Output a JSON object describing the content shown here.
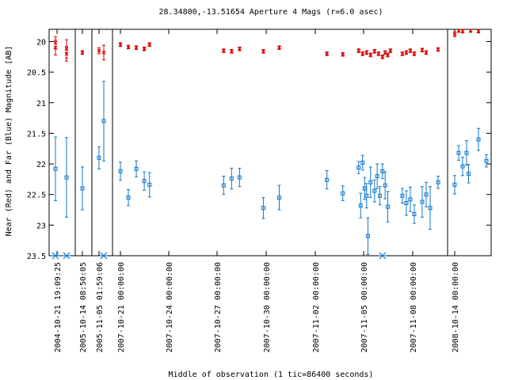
{
  "chart_data": {
    "type": "scatter",
    "title": "28.34800,-13.51654   Aperture 4 Mags (r=6.0 asec)",
    "xlabel": "Middle of observation (1 tic=86400 seconds)",
    "ylabel": "Near (Red) and Far (Blue) Magnitude [AB]",
    "ylim": [
      23.5,
      19.8
    ],
    "y_ticks": [
      "20",
      "20.5",
      "21",
      "21.5",
      "22",
      "22.5",
      "23",
      "23.5"
    ],
    "x_tick_labels": [
      "2004-10-21 19:09:25",
      "2005-10-14 08:50:05",
      "2005-11-05 01:59:06",
      "2007-10-21 00:00:00",
      "2007-10-24 00:00:00",
      "2007-10-27 00:00:00",
      "2007-10-30 00:00:00",
      "2007-11-02 00:00:00",
      "2007-11-05 00:00:00",
      "2007-11-08 00:00:00",
      "2008-10-14 00:00:00"
    ],
    "series": [
      {
        "color": "#dd0000",
        "marker": "x",
        "points": [
          {
            "x": "2004-10-21 19:09:25",
            "y": 20.02,
            "err": 0.1
          },
          {
            "x": "2004-10-21 19:09:25",
            "y": 20.1,
            "err": 0.12
          },
          {
            "x": "2004-10-21 21:30:00",
            "y": 20.12,
            "err": 0.15
          },
          {
            "x": "2004-10-21 21:30:00",
            "y": 20.2,
            "err": 0.12
          },
          {
            "x": "2005-10-14 08:50:05",
            "y": 20.18,
            "err": 0.03
          },
          {
            "x": "2005-11-05 01:59:06",
            "y": 20.15,
            "err": 0.05
          },
          {
            "x": "2005-11-05 04:00:00",
            "y": 20.18,
            "err": 0.12
          },
          {
            "x": "2007-10-21 00:00:00",
            "y": 20.05,
            "err": 0.03
          },
          {
            "x": "2007-10-21 12:00:00",
            "y": 20.09,
            "err": 0.03
          },
          {
            "x": "2007-10-22 00:00:00",
            "y": 20.1,
            "err": 0.03
          },
          {
            "x": "2007-10-22 12:00:00",
            "y": 20.12,
            "err": 0.03
          },
          {
            "x": "2007-10-22 20:00:00",
            "y": 20.05,
            "err": 0.03
          },
          {
            "x": "2007-10-27 12:00:00",
            "y": 20.15,
            "err": 0.03
          },
          {
            "x": "2007-10-28 00:00:00",
            "y": 20.16,
            "err": 0.03
          },
          {
            "x": "2007-10-28 12:00:00",
            "y": 20.12,
            "err": 0.03
          },
          {
            "x": "2007-10-30 00:00:00",
            "y": 20.16,
            "err": 0.03
          },
          {
            "x": "2007-10-31 00:00:00",
            "y": 20.1,
            "err": 0.03
          },
          {
            "x": "2007-11-03 00:00:00",
            "y": 20.2,
            "err": 0.03
          },
          {
            "x": "2007-11-04 00:00:00",
            "y": 20.21,
            "err": 0.03
          },
          {
            "x": "2007-11-05 00:00:00",
            "y": 20.15,
            "err": 0.03
          },
          {
            "x": "2007-11-05 06:00:00",
            "y": 20.2,
            "err": 0.03
          },
          {
            "x": "2007-11-05 12:00:00",
            "y": 20.18,
            "err": 0.03
          },
          {
            "x": "2007-11-05 18:00:00",
            "y": 20.22,
            "err": 0.03
          },
          {
            "x": "2007-11-06 00:00:00",
            "y": 20.16,
            "err": 0.03
          },
          {
            "x": "2007-11-06 06:00:00",
            "y": 20.2,
            "err": 0.03
          },
          {
            "x": "2007-11-06 12:00:00",
            "y": 20.25,
            "err": 0.03
          },
          {
            "x": "2007-11-06 16:00:00",
            "y": 20.18,
            "err": 0.03
          },
          {
            "x": "2007-11-06 20:00:00",
            "y": 20.22,
            "err": 0.03
          },
          {
            "x": "2007-11-07 00:00:00",
            "y": 20.15,
            "err": 0.03
          },
          {
            "x": "2007-11-07 18:00:00",
            "y": 20.2,
            "err": 0.03
          },
          {
            "x": "2007-11-08 00:00:00",
            "y": 20.18,
            "err": 0.03
          },
          {
            "x": "2007-11-08 06:00:00",
            "y": 20.15,
            "err": 0.03
          },
          {
            "x": "2007-11-08 12:00:00",
            "y": 20.2,
            "err": 0.03
          },
          {
            "x": "2007-11-09 00:00:00",
            "y": 20.14,
            "err": 0.03
          },
          {
            "x": "2007-11-09 06:00:00",
            "y": 20.18,
            "err": 0.03
          },
          {
            "x": "2007-11-10 00:00:00",
            "y": 20.13,
            "err": 0.03
          },
          {
            "x": "2008-10-14 00:00:00",
            "y": 19.88,
            "err": 0.04
          },
          {
            "x": "2008-10-14 12:00:00",
            "y": 19.82,
            "err": 0.03
          },
          {
            "x": "2008-10-15 00:00:00",
            "y": 19.83,
            "err": 0.03
          },
          {
            "x": "2008-10-16 00:00:00",
            "y": 19.82,
            "err": 0.03
          },
          {
            "x": "2008-10-17 00:00:00",
            "y": 19.83,
            "err": 0.03
          }
        ]
      },
      {
        "color": "#1177cc",
        "marker": "square",
        "points": [
          {
            "x": "2004-10-21 19:09:25",
            "y": 22.08,
            "err": 0.52
          },
          {
            "x": "2004-10-21 21:30:00",
            "y": 22.22,
            "err": 0.65
          },
          {
            "x": "2005-10-14 08:50:05",
            "y": 22.4,
            "err": 0.35
          },
          {
            "x": "2005-11-05 01:59:06",
            "y": 21.9,
            "err": 0.18
          },
          {
            "x": "2005-11-05 04:00:00",
            "y": 21.3,
            "err": 0.65
          },
          {
            "x": "2007-10-21 00:00:00",
            "y": 22.12,
            "err": 0.15
          },
          {
            "x": "2007-10-21 12:00:00",
            "y": 22.55,
            "err": 0.13
          },
          {
            "x": "2007-10-22 00:00:00",
            "y": 22.08,
            "err": 0.13
          },
          {
            "x": "2007-10-22 12:00:00",
            "y": 22.28,
            "err": 0.15
          },
          {
            "x": "2007-10-22 20:00:00",
            "y": 22.34,
            "err": 0.2
          },
          {
            "x": "2007-10-27 12:00:00",
            "y": 22.35,
            "err": 0.15
          },
          {
            "x": "2007-10-28 00:00:00",
            "y": 22.24,
            "err": 0.17
          },
          {
            "x": "2007-10-28 12:00:00",
            "y": 22.22,
            "err": 0.15
          },
          {
            "x": "2007-10-30 00:00:00",
            "y": 22.72,
            "err": 0.17
          },
          {
            "x": "2007-10-31 00:00:00",
            "y": 22.55,
            "err": 0.2
          },
          {
            "x": "2007-11-03 00:00:00",
            "y": 22.26,
            "err": 0.15
          },
          {
            "x": "2007-11-04 00:00:00",
            "y": 22.48,
            "err": 0.12
          },
          {
            "x": "2007-11-05 00:00:00",
            "y": 22.06,
            "err": 0.1
          },
          {
            "x": "2007-11-05 03:00:00",
            "y": 22.68,
            "err": 0.2
          },
          {
            "x": "2007-11-05 06:00:00",
            "y": 21.98,
            "err": 0.12
          },
          {
            "x": "2007-11-05 09:00:00",
            "y": 22.4,
            "err": 0.18
          },
          {
            "x": "2007-11-05 12:00:00",
            "y": 22.52,
            "err": 0.2
          },
          {
            "x": "2007-11-05 14:00:00",
            "y": 23.18,
            "err": 0.3
          },
          {
            "x": "2007-11-05 18:00:00",
            "y": 22.3,
            "err": 0.25
          },
          {
            "x": "2007-11-06 00:00:00",
            "y": 22.44,
            "err": 0.18
          },
          {
            "x": "2007-11-06 04:00:00",
            "y": 22.2,
            "err": 0.2
          },
          {
            "x": "2007-11-06 08:00:00",
            "y": 22.52,
            "err": 0.15
          },
          {
            "x": "2007-11-06 12:00:00",
            "y": 22.12,
            "err": 0.12
          },
          {
            "x": "2007-11-06 16:00:00",
            "y": 22.35,
            "err": 0.22
          },
          {
            "x": "2007-11-06 20:00:00",
            "y": 22.7,
            "err": 0.25
          },
          {
            "x": "2007-11-07 18:00:00",
            "y": 22.52,
            "err": 0.12
          },
          {
            "x": "2007-11-08 00:00:00",
            "y": 22.64,
            "err": 0.2
          },
          {
            "x": "2007-11-08 06:00:00",
            "y": 22.58,
            "err": 0.2
          },
          {
            "x": "2007-11-08 12:00:00",
            "y": 22.82,
            "err": 0.15
          },
          {
            "x": "2007-11-09 00:00:00",
            "y": 22.62,
            "err": 0.25
          },
          {
            "x": "2007-11-09 06:00:00",
            "y": 22.5,
            "err": 0.2
          },
          {
            "x": "2007-11-09 12:00:00",
            "y": 22.72,
            "err": 0.35
          },
          {
            "x": "2007-11-10 00:00:00",
            "y": 22.3,
            "err": 0.1
          },
          {
            "x": "2008-10-14 00:00:00",
            "y": 22.34,
            "err": 0.15
          },
          {
            "x": "2008-10-14 12:00:00",
            "y": 21.82,
            "err": 0.12
          },
          {
            "x": "2008-10-15 00:00:00",
            "y": 22.04,
            "err": 0.15
          },
          {
            "x": "2008-10-15 12:00:00",
            "y": 21.82,
            "err": 0.2
          },
          {
            "x": "2008-10-15 18:00:00",
            "y": 22.16,
            "err": 0.15
          },
          {
            "x": "2008-10-17 00:00:00",
            "y": 21.6,
            "err": 0.18
          },
          {
            "x": "2008-10-18 00:00:00",
            "y": 21.95,
            "err": 0.1
          }
        ]
      }
    ],
    "limits": [
      {
        "x": "2004-10-21 19:09:25",
        "y": 23.5
      },
      {
        "x": "2004-10-21 21:30:00",
        "y": 23.5
      },
      {
        "x": "2005-11-05 04:00:00",
        "y": 23.5
      },
      {
        "x": "2007-11-06 12:00:00",
        "y": 23.5
      }
    ],
    "axis_breaks": [
      "2005-10-14 08:50:05",
      "2005-11-05 01:59:06",
      "2007-10-21 00:00:00",
      "2008-10-14 00:00:00"
    ]
  }
}
